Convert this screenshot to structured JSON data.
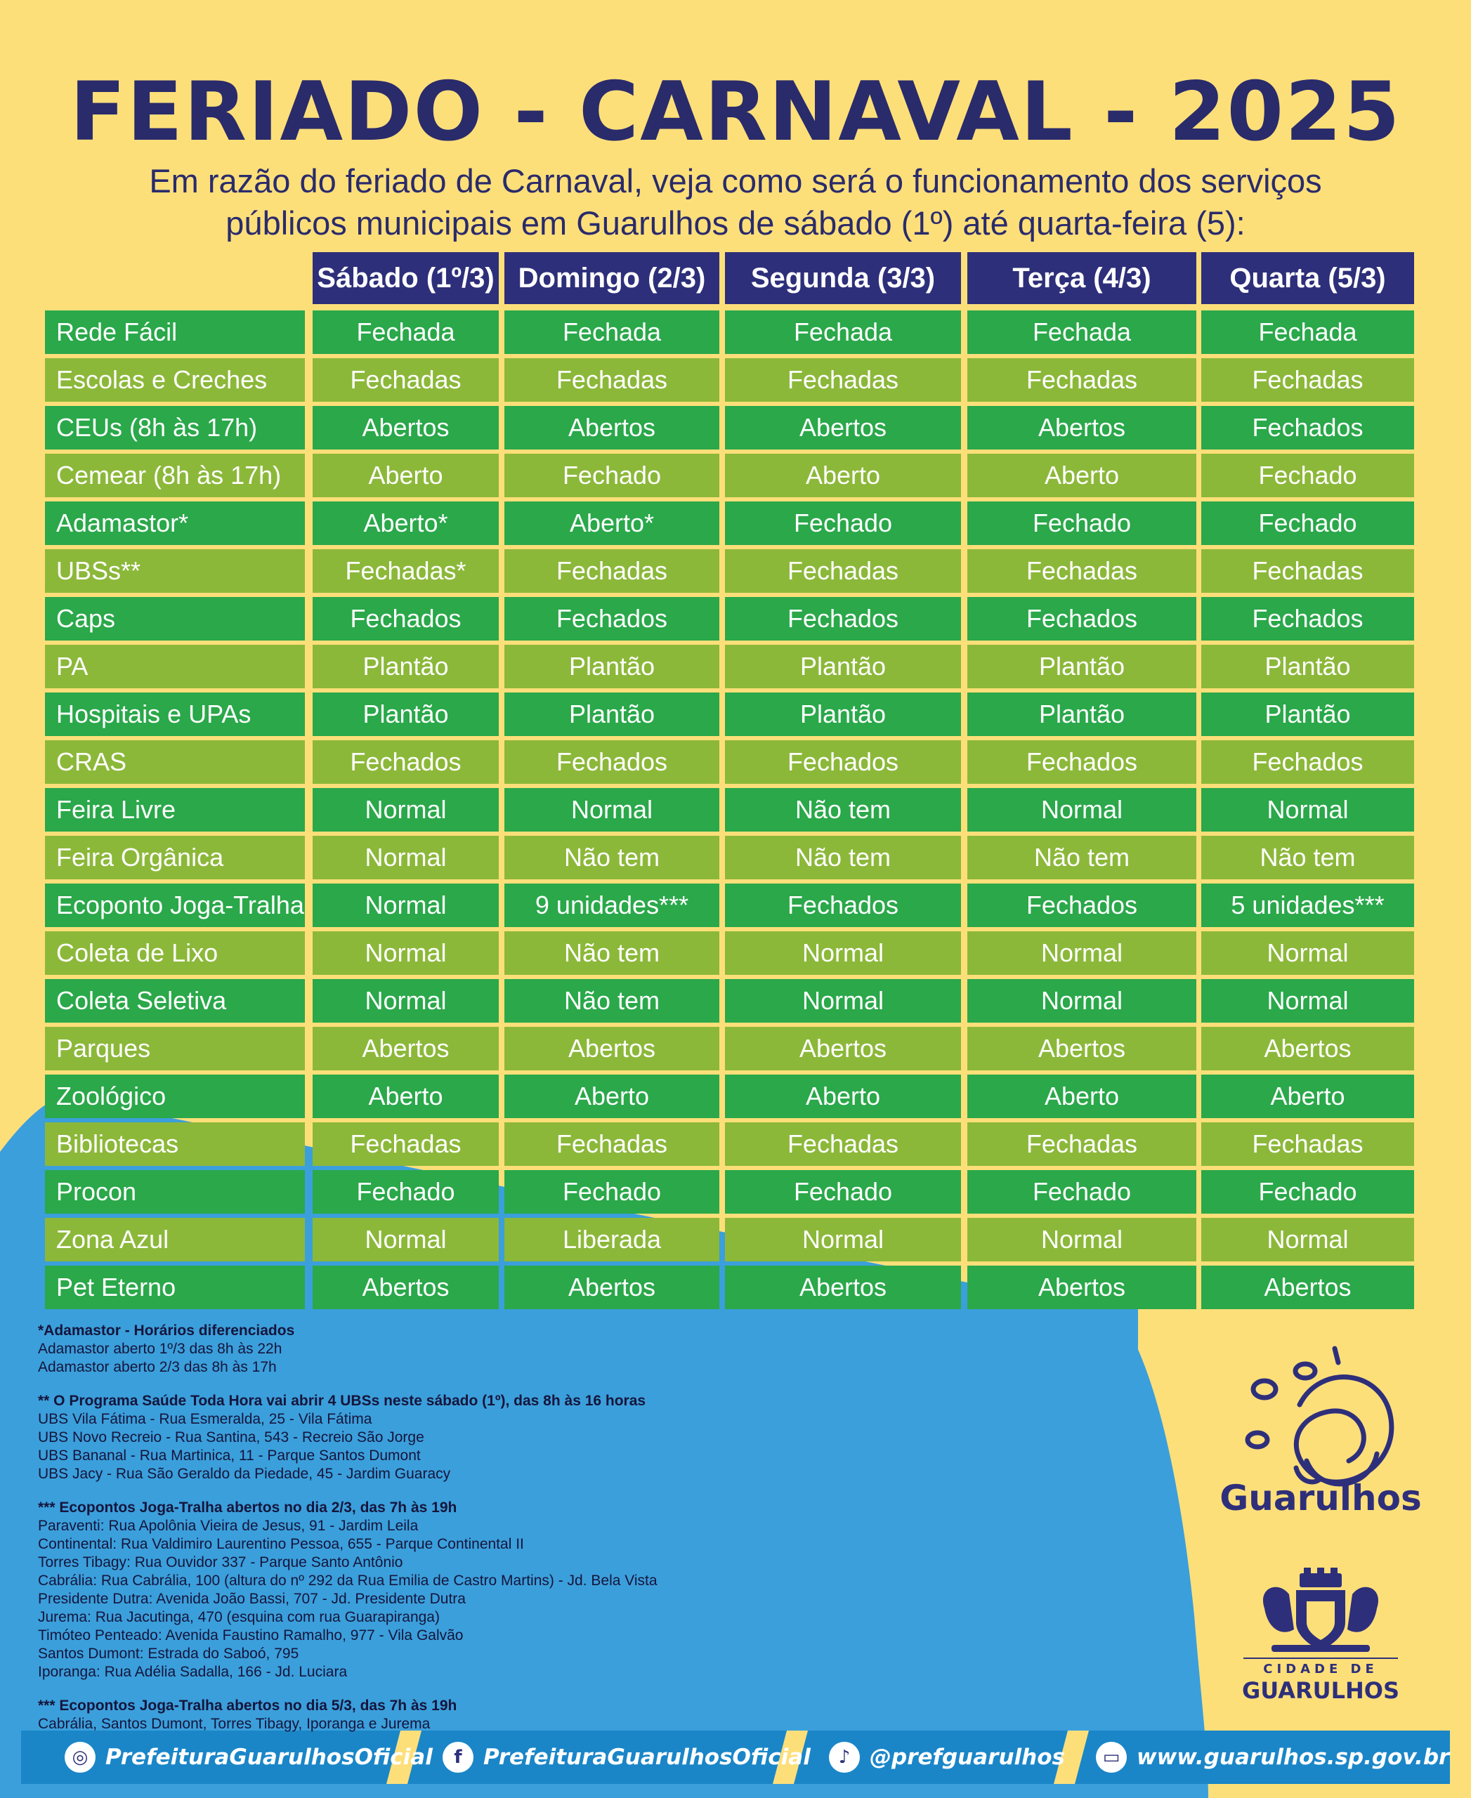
{
  "title": "FERIADO - CARNAVAL - 2025",
  "subtitle_line1": "Em razão do feriado de Carnaval, veja como será o funcionamento dos serviços",
  "subtitle_line2": "públicos municipais em Guarulhos de sábado (1º) até quarta-feira (5):",
  "colors": {
    "background": "#fddf7a",
    "blue": "#3b9fdb",
    "navy": "#2e2f7a",
    "green_dark": "#2aa84a",
    "green_light": "#8cb83a"
  },
  "table": {
    "headers": [
      "Sábado (1º/3)",
      "Domingo (2/3)",
      "Segunda (3/3)",
      "Terça (4/3)",
      "Quarta (5/3)"
    ],
    "rows": [
      {
        "label": "Rede Fácil",
        "values": [
          "Fechada",
          "Fechada",
          "Fechada",
          "Fechada",
          "Fechada"
        ]
      },
      {
        "label": "Escolas e Creches",
        "values": [
          "Fechadas",
          "Fechadas",
          "Fechadas",
          "Fechadas",
          "Fechadas"
        ]
      },
      {
        "label": "CEUs (8h às 17h)",
        "values": [
          "Abertos",
          "Abertos",
          "Abertos",
          "Abertos",
          "Fechados"
        ]
      },
      {
        "label": "Cemear (8h às 17h)",
        "values": [
          "Aberto",
          "Fechado",
          "Aberto",
          "Aberto",
          "Fechado"
        ]
      },
      {
        "label": "Adamastor*",
        "values": [
          "Aberto*",
          "Aberto*",
          "Fechado",
          "Fechado",
          "Fechado"
        ]
      },
      {
        "label": "UBSs**",
        "values": [
          "Fechadas*",
          "Fechadas",
          "Fechadas",
          "Fechadas",
          "Fechadas"
        ]
      },
      {
        "label": "Caps",
        "values": [
          "Fechados",
          "Fechados",
          "Fechados",
          "Fechados",
          "Fechados"
        ]
      },
      {
        "label": "PA",
        "values": [
          "Plantão",
          "Plantão",
          "Plantão",
          "Plantão",
          "Plantão"
        ]
      },
      {
        "label": "Hospitais e UPAs",
        "values": [
          "Plantão",
          "Plantão",
          "Plantão",
          "Plantão",
          "Plantão"
        ]
      },
      {
        "label": "CRAS",
        "values": [
          "Fechados",
          "Fechados",
          "Fechados",
          "Fechados",
          "Fechados"
        ]
      },
      {
        "label": "Feira Livre",
        "values": [
          "Normal",
          "Normal",
          "Não tem",
          "Normal",
          "Normal"
        ]
      },
      {
        "label": "Feira Orgânica",
        "values": [
          "Normal",
          "Não tem",
          "Não tem",
          "Não tem",
          "Não tem"
        ]
      },
      {
        "label": "Ecoponto Joga-Tralha",
        "values": [
          "Normal",
          "9 unidades***",
          "Fechados",
          "Fechados",
          "5 unidades***"
        ]
      },
      {
        "label": "Coleta de Lixo",
        "values": [
          "Normal",
          "Não tem",
          "Normal",
          "Normal",
          "Normal"
        ]
      },
      {
        "label": "Coleta Seletiva",
        "values": [
          "Normal",
          "Não tem",
          "Normal",
          "Normal",
          "Normal"
        ]
      },
      {
        "label": "Parques",
        "values": [
          "Abertos",
          "Abertos",
          "Abertos",
          "Abertos",
          "Abertos"
        ]
      },
      {
        "label": "Zoológico",
        "values": [
          "Aberto",
          "Aberto",
          "Aberto",
          "Aberto",
          "Aberto"
        ]
      },
      {
        "label": "Bibliotecas",
        "values": [
          "Fechadas",
          "Fechadas",
          "Fechadas",
          "Fechadas",
          "Fechadas"
        ]
      },
      {
        "label": "Procon",
        "values": [
          "Fechado",
          "Fechado",
          "Fechado",
          "Fechado",
          "Fechado"
        ]
      },
      {
        "label": "Zona Azul",
        "values": [
          "Normal",
          "Liberada",
          "Normal",
          "Normal",
          "Normal"
        ]
      },
      {
        "label": "Pet Eterno",
        "values": [
          "Abertos",
          "Abertos",
          "Abertos",
          "Abertos",
          "Abertos"
        ]
      }
    ]
  },
  "notes": [
    {
      "heading": "*Adamastor - Horários diferenciados",
      "lines": [
        "Adamastor aberto 1º/3 das 8h às 22h",
        "Adamastor aberto 2/3 das 8h às 17h"
      ]
    },
    {
      "heading": "** O Programa Saúde Toda Hora vai abrir 4 UBSs neste sábado (1º), das 8h às 16 horas",
      "lines": [
        "UBS Vila Fátima - Rua Esmeralda, 25 - Vila Fátima",
        "UBS Novo Recreio - Rua Santina, 543 - Recreio São Jorge",
        "UBS Bananal - Rua Martinica, 11 - Parque Santos Dumont",
        "UBS Jacy - Rua São Geraldo da Piedade, 45 - Jardim Guaracy"
      ]
    },
    {
      "heading": "*** Ecopontos Joga-Tralha abertos no dia 2/3, das 7h às 19h",
      "lines": [
        "Paraventi: Rua Apolônia Vieira de Jesus, 91 - Jardim Leila",
        "Continental: Rua Valdimiro Laurentino Pessoa, 655 - Parque Continental II",
        "Torres Tibagy: Rua Ouvidor 337 -  Parque Santo Antônio",
        "Cabrália: Rua Cabrália, 100 (altura do nº 292 da Rua Emilia de Castro Martins) - Jd. Bela Vista",
        "Presidente Dutra:  Avenida João Bassi, 707 - Jd. Presidente Dutra",
        "Jurema: Rua Jacutinga, 470 (esquina com rua Guarapiranga)",
        "Timóteo Penteado: Avenida Faustino Ramalho, 977 - Vila Galvão",
        "Santos Dumont: Estrada do Saboó, 795",
        "Iporanga: Rua Adélia Sadalla, 166 - Jd. Luciara"
      ]
    },
    {
      "heading": "*** Ecopontos Joga-Tralha abertos no dia 5/3, das 7h às 19h",
      "lines": [
        "Cabrália, Santos Dumont, Torres Tibagy,  Iporanga e Jurema"
      ]
    }
  ],
  "brand": {
    "name": "Guarulhos",
    "cidade_de": "CIDADE DE",
    "cidade_name": "GUARULHOS"
  },
  "footer": [
    {
      "icon": "instagram-icon",
      "glyph": "◎",
      "label": "PrefeituraGuarulhosOficial"
    },
    {
      "icon": "facebook-icon",
      "glyph": "f",
      "label": "PrefeituraGuarulhosOficial"
    },
    {
      "icon": "tiktok-icon",
      "glyph": "♪",
      "label": "@prefguarulhos"
    },
    {
      "icon": "web-icon",
      "glyph": "▭",
      "label": "www.guarulhos.sp.gov.br"
    }
  ]
}
